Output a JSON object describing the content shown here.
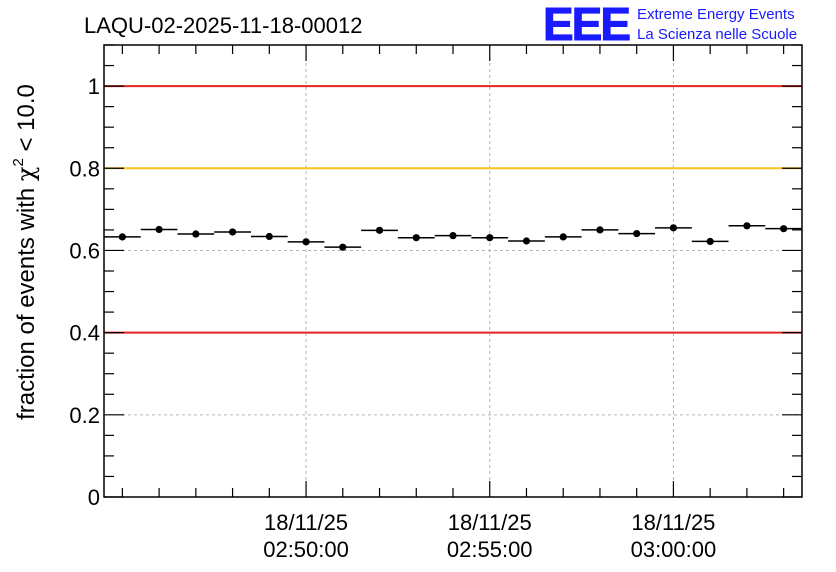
{
  "chart_data": {
    "type": "scatter",
    "title": "LAQU-02-2025-11-18-00012",
    "xlabel": "",
    "ylabel_prefix": "fraction of events with ",
    "ylabel_symbol": "χ",
    "ylabel_superscript": "2",
    "ylabel_suffix": " < 10.0",
    "ylim": [
      0,
      1.1
    ],
    "yticks": [
      0,
      0.2,
      0.4,
      0.6,
      0.8,
      1.0
    ],
    "ytick_labels": [
      "0",
      "0.2",
      "0.4",
      "0.6",
      "0.8",
      "1"
    ],
    "xlim_minutes": [
      -5.5,
      13.5
    ],
    "xtick_major_minutes": [
      0,
      5,
      10
    ],
    "xtick_labels": [
      {
        "date": "18/11/25",
        "time": "02:50:00"
      },
      {
        "date": "18/11/25",
        "time": "02:55:00"
      },
      {
        "date": "18/11/25",
        "time": "03:00:00"
      }
    ],
    "xtick_minor_step_minutes": 1,
    "reference_lines": [
      {
        "y": 1.0,
        "color": "#e8231d",
        "name": "upper-red-line"
      },
      {
        "y": 0.8,
        "color": "#f7c21a",
        "name": "yellow-line"
      },
      {
        "y": 0.4,
        "color": "#e8231d",
        "name": "lower-red-line"
      }
    ],
    "grid": true,
    "bin_width_minutes": 1,
    "points": [
      {
        "x": -5.0,
        "y": 0.633,
        "err": 0.006
      },
      {
        "x": -4.0,
        "y": 0.651,
        "err": 0.006
      },
      {
        "x": -3.0,
        "y": 0.64,
        "err": 0.006
      },
      {
        "x": -2.0,
        "y": 0.645,
        "err": 0.006
      },
      {
        "x": -1.0,
        "y": 0.634,
        "err": 0.006
      },
      {
        "x": 0.0,
        "y": 0.621,
        "err": 0.006
      },
      {
        "x": 1.0,
        "y": 0.608,
        "err": 0.006
      },
      {
        "x": 2.0,
        "y": 0.649,
        "err": 0.006
      },
      {
        "x": 3.0,
        "y": 0.631,
        "err": 0.006
      },
      {
        "x": 4.0,
        "y": 0.636,
        "err": 0.006
      },
      {
        "x": 5.0,
        "y": 0.631,
        "err": 0.006
      },
      {
        "x": 6.0,
        "y": 0.623,
        "err": 0.006
      },
      {
        "x": 7.0,
        "y": 0.633,
        "err": 0.006
      },
      {
        "x": 8.0,
        "y": 0.65,
        "err": 0.006
      },
      {
        "x": 9.0,
        "y": 0.641,
        "err": 0.006
      },
      {
        "x": 10.0,
        "y": 0.655,
        "err": 0.006
      },
      {
        "x": 11.0,
        "y": 0.622,
        "err": 0.006
      },
      {
        "x": 12.0,
        "y": 0.66,
        "err": 0.006
      },
      {
        "x": 13.0,
        "y": 0.653,
        "err": 0.006
      }
    ]
  },
  "logo": {
    "mark": "EEE",
    "line1": "Extreme Energy Events",
    "line2": "La Scienza nelle Scuole",
    "color": "#1a1aff"
  }
}
